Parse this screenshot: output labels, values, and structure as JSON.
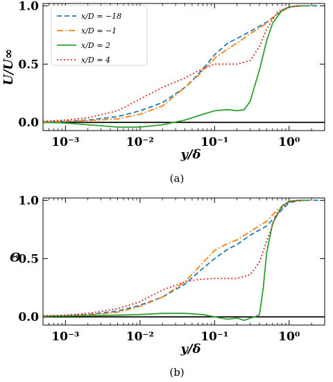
{
  "chart_data": [
    {
      "type": "line",
      "panel": "(a)",
      "xlabel": "y/δ",
      "ylabel": "U/U∞",
      "xscale": "log",
      "xlim": [
        0.0005,
        3
      ],
      "ylim": [
        -0.07,
        1.02
      ],
      "xtick_labels": [
        "10⁻³",
        "10⁻²",
        "10⁻¹",
        "10⁰"
      ],
      "xticks": [
        0.001,
        0.01,
        0.1,
        1
      ],
      "ytick_labels": [
        "0.0",
        "0.5",
        "1.0"
      ],
      "yticks": [
        0,
        0.5,
        1.0
      ],
      "baseline": 0,
      "legend": "top-left",
      "caption": "(a)",
      "series": [
        {
          "name": "x/D = −18",
          "color": "#1f77b4",
          "dash": "7,4",
          "x": [
            0.0005,
            0.001,
            0.002,
            0.005,
            0.01,
            0.02,
            0.04,
            0.06,
            0.1,
            0.15,
            0.2,
            0.3,
            0.5,
            0.7,
            1.0,
            1.5,
            2.5
          ],
          "y": [
            0.005,
            0.01,
            0.02,
            0.05,
            0.1,
            0.17,
            0.3,
            0.41,
            0.58,
            0.68,
            0.72,
            0.78,
            0.86,
            0.93,
            0.99,
            1.0,
            1.0
          ]
        },
        {
          "name": "x/D = −1",
          "color": "#ff7f0e",
          "dash": "9,3,2,3",
          "x": [
            0.0005,
            0.001,
            0.002,
            0.005,
            0.01,
            0.02,
            0.04,
            0.06,
            0.1,
            0.15,
            0.2,
            0.3,
            0.5,
            0.7,
            1.0,
            1.5,
            2.0
          ],
          "y": [
            0.005,
            0.008,
            0.015,
            0.03,
            0.07,
            0.14,
            0.3,
            0.4,
            0.55,
            0.63,
            0.68,
            0.76,
            0.85,
            0.93,
            0.99,
            1.0,
            1.0
          ]
        },
        {
          "name": "x/D = 2",
          "color": "#2ca02c",
          "dash": "",
          "x": [
            0.0005,
            0.001,
            0.002,
            0.005,
            0.01,
            0.02,
            0.04,
            0.07,
            0.1,
            0.15,
            0.2,
            0.25,
            0.3,
            0.4,
            0.5,
            0.6,
            0.8,
            1.0,
            1.3,
            1.8
          ],
          "y": [
            0.0,
            -0.005,
            -0.02,
            -0.04,
            -0.04,
            -0.02,
            0.02,
            0.07,
            0.1,
            0.11,
            0.1,
            0.11,
            0.18,
            0.45,
            0.7,
            0.85,
            0.96,
            0.99,
            1.0,
            1.0
          ]
        },
        {
          "name": "x/D = 4",
          "color": "#d62728",
          "dash": "2,3",
          "x": [
            0.0005,
            0.001,
            0.002,
            0.005,
            0.01,
            0.02,
            0.04,
            0.06,
            0.1,
            0.15,
            0.2,
            0.3,
            0.4,
            0.5,
            0.7,
            1.0,
            1.5
          ],
          "y": [
            0.01,
            0.02,
            0.04,
            0.1,
            0.2,
            0.3,
            0.38,
            0.44,
            0.5,
            0.5,
            0.5,
            0.53,
            0.65,
            0.8,
            0.95,
            0.99,
            1.0
          ]
        }
      ]
    },
    {
      "type": "line",
      "panel": "(b)",
      "xlabel": "y/δ",
      "ylabel": "Θ",
      "xscale": "log",
      "xlim": [
        0.0005,
        3
      ],
      "ylim": [
        -0.07,
        1.02
      ],
      "xtick_labels": [
        "10⁻³",
        "10⁻²",
        "10⁻¹",
        "10⁰"
      ],
      "xticks": [
        0.001,
        0.01,
        0.1,
        1
      ],
      "ytick_labels": [
        "0.0",
        "0.5",
        "1.0"
      ],
      "yticks": [
        0,
        0.5,
        1.0
      ],
      "baseline": 0,
      "caption": "(b)",
      "series": [
        {
          "name": "x/D = −18",
          "color": "#1f77b4",
          "dash": "7,4",
          "x": [
            0.0005,
            0.001,
            0.002,
            0.005,
            0.01,
            0.02,
            0.04,
            0.06,
            0.1,
            0.15,
            0.2,
            0.3,
            0.5,
            0.7,
            1.0,
            1.5,
            2.5
          ],
          "y": [
            0.005,
            0.01,
            0.02,
            0.05,
            0.1,
            0.17,
            0.28,
            0.38,
            0.5,
            0.58,
            0.62,
            0.7,
            0.78,
            0.88,
            0.98,
            1.0,
            1.0
          ]
        },
        {
          "name": "x/D = −1",
          "color": "#ff7f0e",
          "dash": "9,3,2,3",
          "x": [
            0.0005,
            0.001,
            0.002,
            0.005,
            0.01,
            0.02,
            0.04,
            0.06,
            0.1,
            0.15,
            0.2,
            0.3,
            0.5,
            0.7,
            1.0,
            1.5,
            2.0
          ],
          "y": [
            0.005,
            0.008,
            0.015,
            0.04,
            0.09,
            0.17,
            0.3,
            0.42,
            0.57,
            0.63,
            0.66,
            0.73,
            0.82,
            0.92,
            0.99,
            1.0,
            1.0
          ]
        },
        {
          "name": "x/D = 2",
          "color": "#2ca02c",
          "dash": "",
          "x": [
            0.0005,
            0.001,
            0.002,
            0.005,
            0.01,
            0.02,
            0.04,
            0.07,
            0.1,
            0.15,
            0.2,
            0.25,
            0.3,
            0.35,
            0.4,
            0.45,
            0.5,
            0.6,
            0.8,
            1.0,
            1.3,
            1.8
          ],
          "y": [
            0.005,
            0.008,
            0.01,
            0.015,
            0.02,
            0.03,
            0.03,
            0.02,
            0.0,
            -0.02,
            -0.01,
            -0.03,
            -0.01,
            0.0,
            0.02,
            0.25,
            0.55,
            0.8,
            0.95,
            0.99,
            1.0,
            1.0
          ]
        },
        {
          "name": "x/D = 4",
          "color": "#d62728",
          "dash": "2,3",
          "x": [
            0.0005,
            0.001,
            0.002,
            0.005,
            0.01,
            0.02,
            0.04,
            0.06,
            0.1,
            0.15,
            0.2,
            0.3,
            0.4,
            0.5,
            0.7,
            1.0,
            1.5
          ],
          "y": [
            0.01,
            0.015,
            0.03,
            0.07,
            0.13,
            0.23,
            0.3,
            0.32,
            0.33,
            0.33,
            0.33,
            0.36,
            0.47,
            0.65,
            0.9,
            0.99,
            1.0
          ]
        }
      ]
    }
  ]
}
